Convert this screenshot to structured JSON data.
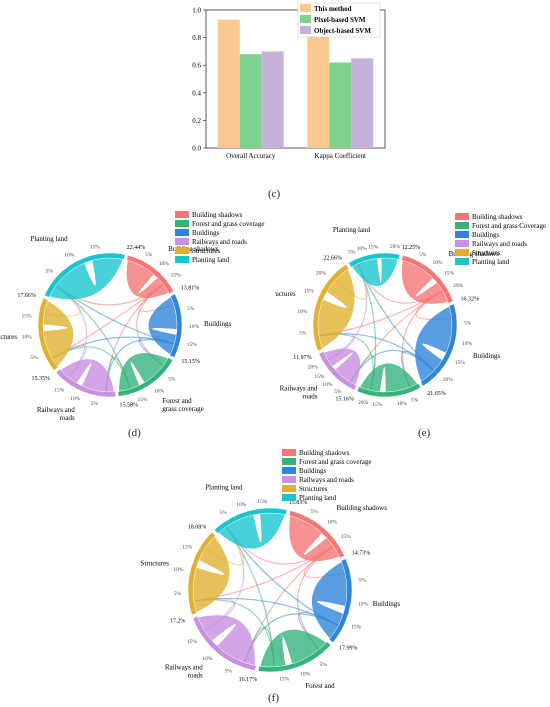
{
  "colors": {
    "this_method": "#fbc990",
    "pixel_svm": "#7fd28c",
    "object_svm": "#c6b2d6",
    "building_shadows": "#f47676",
    "forest_grass": "#35b37a",
    "buildings": "#2f86d9",
    "railways_roads": "#c98fe0",
    "structures": "#e0b030",
    "planting_land": "#19c6cf"
  },
  "chart_data": [
    {
      "type": "bar",
      "panel": "(c)",
      "categories": [
        "Overall Accuracy",
        "Kappa Coefficient"
      ],
      "series": [
        {
          "name": "This method",
          "values": [
            0.93,
            0.91
          ]
        },
        {
          "name": "Pixel-based SVM",
          "values": [
            0.68,
            0.62
          ]
        },
        {
          "name": "Object-based SVM",
          "values": [
            0.7,
            0.65
          ]
        }
      ],
      "yticks": [
        "0.0",
        "0.2",
        "0.4",
        "0.6",
        "0.8",
        "1.0"
      ],
      "ylim": [
        0,
        1.0
      ],
      "legend": "top-right"
    },
    {
      "type": "chord",
      "panel": "(d)",
      "legend": [
        "Building shadows",
        "Forest and grass coverage",
        "Buildings",
        "Railways and roads",
        "Structures",
        "Planting land"
      ],
      "arcs": [
        {
          "name": "Building shadows",
          "percent": "13.81%",
          "label": "Building shadows"
        },
        {
          "name": "Buildings",
          "percent": "15.15%",
          "label": "Buildings"
        },
        {
          "name": "Forest and grass coverage",
          "percent": "15.58%",
          "label": "Forest and grass coverage"
        },
        {
          "name": "Railways and roads",
          "percent": "15.35%",
          "label": "Railways and roads"
        },
        {
          "name": "Structures",
          "percent": "17.66%",
          "label": "Structures"
        },
        {
          "name": "Planting land",
          "percent": "22.44%",
          "label": "Planting land"
        }
      ],
      "ticks": [
        "5%",
        "10%",
        "15%"
      ]
    },
    {
      "type": "chord",
      "panel": "(e)",
      "legend": [
        "Building shadows",
        "Forest and grass Coverage",
        "Buildings",
        "Railways and roads",
        "Structures",
        "Planting land"
      ],
      "arcs": [
        {
          "name": "Building shadows",
          "percent": "16.32%",
          "label": "Building shadows"
        },
        {
          "name": "Buildings",
          "percent": "21.65%",
          "label": "Buildings"
        },
        {
          "name": "Forest and grass coverage",
          "percent": "15.16%",
          "label": ""
        },
        {
          "name": "Railways and roads",
          "percent": "11.97%",
          "label": "Railways and roads"
        },
        {
          "name": "Structures",
          "percent": "22.66%",
          "label": "Structures"
        },
        {
          "name": "Planting land",
          "percent": "12.25%",
          "label": "Planting land"
        }
      ],
      "ticks": [
        "5%",
        "10%",
        "15%",
        "20%"
      ]
    },
    {
      "type": "chord",
      "panel": "(f)",
      "legend": [
        "Building shadows",
        "Forest and grass coverage",
        "Buildings",
        "Railways and roads",
        "Structures",
        "Planting land"
      ],
      "arcs": [
        {
          "name": "Building shadows",
          "percent": "14.73%",
          "label": "Building shadows"
        },
        {
          "name": "Buildings",
          "percent": "17.99%",
          "label": "Buildings"
        },
        {
          "name": "Forest and grass coverage",
          "percent": "16.17%",
          "label": "Forest and grass coverage"
        },
        {
          "name": "Railways and roads",
          "percent": "17.2%",
          "label": "Railways and roads"
        },
        {
          "name": "Structures",
          "percent": "18.08%",
          "label": "Structures"
        },
        {
          "name": "Planting land",
          "percent": "15.83%",
          "label": "Planting land"
        }
      ],
      "ticks": [
        "5%",
        "10%",
        "15%"
      ]
    }
  ]
}
